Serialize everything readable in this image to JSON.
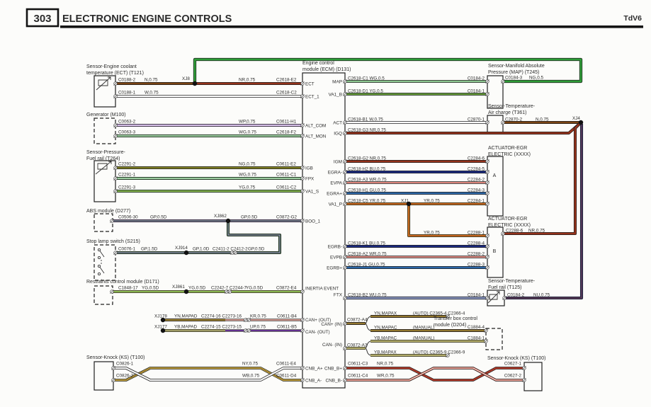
{
  "header": {
    "page": "303",
    "title": "ELECTRONIC ENGINE CONTROLS",
    "variant": "TdV6"
  },
  "ecm": {
    "t1": "Engine control",
    "t2": "module (ECM) (D131)",
    "pins": {
      "ect": "ECT",
      "ect1": "ECT_1",
      "altcom": "ALT_COM",
      "altmon": "ALT_MON",
      "igb": "IGB",
      "fpx": "FPX",
      "va1s": "VA1_S",
      "boo1": "BOO_1",
      "inertia": "INERTIA EVENT",
      "canpout": "CAN+ (OUT)",
      "canmout": "CAN- (OUT)",
      "cnbap": "CNB_A+",
      "cnbam": "CNB_A-",
      "map": "MAP",
      "va1b": "VA1_B",
      "act": "ACT",
      "igq": "IGQ",
      "igm": "IGM",
      "egram": "EGRA-",
      "evpa": "EVPA",
      "egrap": "EGRA+",
      "va1p": "VA1_P",
      "egrbm": "EGRB-",
      "evpb": "EVPB",
      "egrbp": "EGRB+",
      "ftx": "FTX",
      "canpin": "CAN+ (IN)",
      "canmin": "CAN- (IN)",
      "cnbbp": "CNB_B+",
      "cnbbm": "CNB_B-"
    }
  },
  "ect": {
    "t1": "Sensor-Engine coolant",
    "t2": "temperature (ECT) (T121)",
    "p1": "C0188-2",
    "c1": "N,0.75",
    "sp": "XJ8",
    "c2": "NR,0.75",
    "e1": "C2618-E2",
    "p2": "C0188-1",
    "c3": "W,0.75",
    "e2": "C2618-C2"
  },
  "gen": {
    "t": "Generator (M100)",
    "p1": "C0063-2",
    "c1": "WP,0.75",
    "e1": "C0611-H1",
    "p2": "C0063-3",
    "c2": "WG,0.75",
    "e2": "C2618-F2"
  },
  "frp": {
    "t1": "Sensor-Pressure-",
    "t2": "Fuel rail (T264)",
    "p1": "C2291-2",
    "c1": "NG,0.75",
    "e1": "C0611-E2",
    "p2": "C2291-1",
    "c2": "WG,0.75",
    "e2": "C0611-C1",
    "p3": "C2291-3",
    "c3": "YG,0.75",
    "e3": "C0611-C2"
  },
  "abs": {
    "t": "ABS module (D277)",
    "p1": "C0506-30",
    "c1": "GP,0.5D",
    "sp": "XJ862",
    "c2": "GP,0.5D",
    "e1": "C0872-G2"
  },
  "sls": {
    "t": "Stop lamp switch (S215)",
    "p1": "C0076-1",
    "c1": "GP,1.5D",
    "sp": "XJ914",
    "c2": "GP,1.0D",
    "cn": "C2411-2 C2412-2",
    "c3": "GP,0.5D"
  },
  "rcm": {
    "t": "Restraints control module (D171)",
    "p1": "C1848-17",
    "c1": "YG,0.5D",
    "sp": "XJ861",
    "c2": "YG,0.5D",
    "cn": "C2242-7 C2244-7",
    "c3": "YG,0.5D",
    "e1": "C0872-E4"
  },
  "canout": {
    "sp1": "XJ178",
    "c1": "YN,MAPAD",
    "cn1": "C2274-16 C2273-16",
    "c2": "KR,0.75",
    "e1": "C0611-B4",
    "sp2": "XJ177",
    "c3": "YB,MAPAD",
    "cn2": "C2274-15 C2273-15",
    "c4": "UP,0.75",
    "e2": "C0611-B5"
  },
  "knockl": {
    "t": "Sensor-Knock (KS) (T100)",
    "p1": "C0826-1",
    "p2": "C0826-2",
    "c1": "NY,0.75",
    "c2": "WB,0.75",
    "e1": "C0611-E4",
    "e2": "C0611-D4"
  },
  "map": {
    "t1": "Sensor-Manifold Absolute",
    "t2": "Pressure (MAP) (T245)",
    "w1": "C2618-C1 WG,0.5",
    "p1": "C0184-2",
    "w2": "C2618-D1 YG,0.5",
    "p2": "C0184-1",
    "p3": "C0184-3",
    "c3": "NG,0.5"
  },
  "t361": {
    "t1": "Sensor-Temperature-",
    "t2": "Air charge (T361)",
    "w1": "C2618-B1 W,0.75",
    "p1": "C2870-1",
    "p2": "C2870-2",
    "c2": "N,0.75",
    "sp": "XJ4",
    "w2": "C2618-G3 NR,0.75"
  },
  "egra": {
    "t1": "ACTUATOR-EGR",
    "t2": "ELECTRIC (XXXX)",
    "letter": "A",
    "w1": "C2618-G2 NR,0.75",
    "p1": "C2284-6",
    "w2": "C2618-H2 BU,0.75",
    "p2": "C2284-5",
    "w3": "C2618-A3 WR,0.75",
    "p3": "C2284-2",
    "w4": "C2618-H1 GU,0.75",
    "p4": "C2284-3",
    "w5": "C2618-C5 YR,0.75",
    "sp": "XJ1",
    "c5": "YR,0.75",
    "p5": "C2284-1"
  },
  "egrb": {
    "t1": "ACTUATOR-EGR",
    "t2": "ELECTRIC (XXXX)",
    "letter": "B",
    "c1": "YR,0.75",
    "p1": "C2288-1",
    "w2": "C2618-K1 BU,0.75",
    "p2": "C2288-4",
    "w3": "C2618-A2 WR,0.75",
    "p3": "C2288-2",
    "w4": "C2618-J1 GU,0.75",
    "p4": "C2288-3",
    "p6": "C2288-6",
    "c6": "NR,0.75"
  },
  "t125": {
    "t1": "Sensor-Temperature-",
    "t2": "Fuel rail (T125)",
    "w1": "C2618-B2 WU,0.75",
    "p1": "C0184-1",
    "p2": "C0184-2",
    "c2": "NU,0.75"
  },
  "canin": {
    "e1": "C0872-A4",
    "a1": "YN,MAPAX",
    "a1c": "(AUTO) C2365-4 C2366-4",
    "m1": "YN,MAPAC",
    "m1c": "(MANUAL)",
    "m1p": "C1884-4",
    "e2": "C0872-A3",
    "m2": "YB,MAPAC",
    "m2c": "(MANUAL)",
    "m2p": "C1884-1",
    "a2": "YB,MAPAX",
    "a2c": "(AUTO) C2365-9 C2366-9"
  },
  "tbox": {
    "t1": "Transfer box control",
    "t2": "module (D204)"
  },
  "knockr": {
    "t": "Sensor-Knock (KS) (T100)",
    "e1": "C0611-C3",
    "c1": "NR,0.75",
    "e2": "C0611-C4",
    "c2": "WR,0.75",
    "p1": "C0627-1",
    "p2": "C0627-2"
  }
}
